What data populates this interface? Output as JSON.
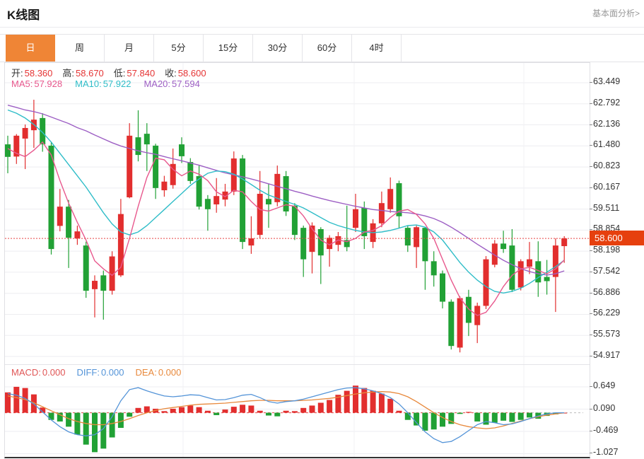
{
  "header": {
    "title": "K线图",
    "link_label": "基本面分析>"
  },
  "tabs": [
    {
      "label": "日",
      "selected": true
    },
    {
      "label": "周",
      "selected": false
    },
    {
      "label": "月",
      "selected": false
    },
    {
      "label": "5分",
      "selected": false
    },
    {
      "label": "15分",
      "selected": false
    },
    {
      "label": "30分",
      "selected": false
    },
    {
      "label": "60分",
      "selected": false
    },
    {
      "label": "4时",
      "selected": false
    }
  ],
  "ohlc_legend": [
    {
      "label": "开:",
      "value": "58.360"
    },
    {
      "label": "高:",
      "value": "58.670"
    },
    {
      "label": "低:",
      "value": "57.840"
    },
    {
      "label": "收:",
      "value": "58.600"
    }
  ],
  "ma_legend": [
    {
      "label": "MA5:",
      "value": "57.928",
      "color": "#e8588d"
    },
    {
      "label": "MA10:",
      "value": "57.922",
      "color": "#2fbdc8"
    },
    {
      "label": "MA20:",
      "value": "57.594",
      "color": "#9d5fc4"
    }
  ],
  "macd_legend": [
    {
      "label": "MACD:",
      "value": "0.000",
      "color": "#e05656"
    },
    {
      "label": "DIFF:",
      "value": "0.000",
      "color": "#5494d8"
    },
    {
      "label": "DEA:",
      "value": "0.000",
      "color": "#e8893c"
    }
  ],
  "price_badge": {
    "value": "58.600",
    "color": "#e6400e"
  },
  "colors": {
    "up": "#e22e2e",
    "down": "#21a135",
    "selected_tab": "#ef8536",
    "dotted_line": "#e64545",
    "ohlc_value": "#e53535",
    "diff_line": "#5494d8",
    "dea_line": "#e8893c",
    "ma5": "#e8588d",
    "ma10": "#2fbdc8",
    "ma20": "#9d5fc4",
    "grid": "#ededf1",
    "vgrid": "#f2f2f5"
  },
  "chart_data": {
    "type": "candlestick-with-macd",
    "main_axis_ticks": [
      "63.449",
      "62.792",
      "62.136",
      "61.480",
      "60.823",
      "60.167",
      "59.511",
      "58.854",
      "58.198",
      "57.542",
      "56.886",
      "56.229",
      "55.573",
      "54.917"
    ],
    "main_axis_top_value": 63.449,
    "main_axis_step": 0.6558,
    "dotted_line_price": 58.6,
    "candles_ohlc": [
      [
        61.53,
        61.8,
        60.63,
        61.14
      ],
      [
        61.15,
        61.85,
        60.92,
        61.8
      ],
      [
        61.71,
        62.15,
        60.76,
        62.04
      ],
      [
        61.97,
        62.92,
        61.42,
        62.3
      ],
      [
        62.35,
        62.5,
        61.3,
        61.53
      ],
      [
        61.49,
        61.6,
        58.1,
        58.27
      ],
      [
        58.99,
        60.14,
        58.82,
        59.59
      ],
      [
        59.59,
        59.8,
        57.68,
        58.62
      ],
      [
        58.6,
        59.0,
        58.4,
        58.82
      ],
      [
        58.38,
        58.5,
        56.75,
        56.97
      ],
      [
        57.02,
        57.45,
        56.14,
        57.28
      ],
      [
        57.45,
        57.6,
        56.07,
        56.97
      ],
      [
        56.97,
        58.2,
        56.85,
        58.04
      ],
      [
        57.45,
        59.83,
        57.4,
        59.36
      ],
      [
        59.88,
        62.19,
        59.85,
        61.8
      ],
      [
        61.75,
        62.59,
        61.0,
        61.2
      ],
      [
        61.86,
        62.19,
        60.7,
        61.53
      ],
      [
        61.49,
        61.55,
        59.83,
        60.17
      ],
      [
        60.1,
        60.55,
        59.9,
        60.37
      ],
      [
        60.26,
        61.4,
        60.15,
        60.92
      ],
      [
        61.53,
        61.75,
        60.95,
        61.16
      ],
      [
        60.98,
        61.1,
        60.3,
        60.39
      ],
      [
        60.54,
        60.87,
        59.5,
        59.59
      ],
      [
        59.83,
        59.95,
        58.84,
        59.51
      ],
      [
        59.66,
        60.48,
        59.4,
        59.92
      ],
      [
        59.81,
        60.3,
        59.6,
        60.06
      ],
      [
        60.06,
        61.31,
        59.95,
        61.09
      ],
      [
        61.09,
        61.2,
        58.27,
        58.49
      ],
      [
        58.38,
        59.29,
        58.12,
        58.6
      ],
      [
        58.71,
        60.7,
        58.6,
        59.99
      ],
      [
        59.83,
        60.3,
        58.93,
        59.66
      ],
      [
        59.73,
        60.87,
        59.6,
        60.61
      ],
      [
        60.54,
        60.7,
        59.3,
        59.44
      ],
      [
        59.62,
        59.7,
        58.55,
        58.71
      ],
      [
        58.93,
        59.0,
        57.4,
        57.95
      ],
      [
        58.18,
        59.1,
        57.51,
        59.0
      ],
      [
        58.89,
        58.95,
        57.18,
        58.07
      ],
      [
        58.27,
        58.7,
        57.72,
        58.62
      ],
      [
        58.4,
        58.8,
        58.2,
        58.67
      ],
      [
        58.55,
        59.62,
        58.2,
        58.33
      ],
      [
        58.93,
        59.99,
        58.8,
        59.51
      ],
      [
        59.55,
        59.75,
        58.27,
        58.67
      ],
      [
        58.49,
        59.2,
        58.3,
        59.07
      ],
      [
        59.07,
        60.06,
        58.95,
        59.7
      ],
      [
        59.51,
        60.5,
        59.4,
        60.14
      ],
      [
        60.32,
        60.4,
        58.93,
        59.29
      ],
      [
        58.93,
        59.0,
        58.18,
        58.38
      ],
      [
        58.33,
        59.0,
        57.68,
        58.95
      ],
      [
        58.93,
        58.95,
        57.0,
        57.89
      ],
      [
        57.89,
        58.2,
        57.1,
        57.45
      ],
      [
        57.51,
        57.6,
        56.42,
        56.63
      ],
      [
        56.63,
        56.7,
        55.14,
        55.25
      ],
      [
        55.2,
        56.8,
        55.05,
        56.74
      ],
      [
        56.78,
        57.0,
        55.56,
        55.97
      ],
      [
        55.9,
        56.6,
        55.34,
        56.5
      ],
      [
        56.5,
        58.05,
        56.4,
        57.95
      ],
      [
        57.78,
        58.55,
        57.7,
        58.44
      ],
      [
        58.44,
        58.84,
        58.15,
        58.27
      ],
      [
        58.38,
        58.89,
        56.93,
        57.0
      ],
      [
        57.07,
        57.95,
        56.98,
        57.89
      ],
      [
        57.72,
        58.49,
        57.49,
        57.95
      ],
      [
        57.89,
        58.51,
        56.78,
        57.23
      ],
      [
        57.4,
        57.93,
        56.85,
        57.27
      ],
      [
        57.4,
        58.6,
        56.31,
        58.38
      ],
      [
        58.36,
        58.67,
        57.84,
        58.6
      ]
    ],
    "ma5": [
      61.4,
      61.25,
      61.15,
      61.35,
      61.6,
      61.2,
      60.4,
      59.7,
      59.1,
      58.55,
      57.9,
      57.65,
      57.45,
      57.7,
      58.6,
      59.6,
      60.5,
      61.1,
      61.05,
      60.75,
      60.55,
      60.7,
      60.6,
      60.4,
      60.05,
      59.9,
      60.1,
      60.05,
      59.75,
      59.5,
      59.45,
      59.55,
      59.65,
      59.6,
      59.3,
      58.9,
      58.55,
      58.4,
      58.55,
      58.5,
      58.6,
      58.8,
      58.85,
      59.0,
      59.25,
      59.45,
      59.5,
      59.35,
      59.05,
      58.6,
      57.95,
      57.3,
      56.75,
      56.4,
      56.2,
      56.3,
      56.65,
      57.1,
      57.45,
      57.65,
      57.7,
      57.6,
      57.5,
      57.65,
      57.93
    ],
    "ma10": [
      62.6,
      62.5,
      62.35,
      62.15,
      61.9,
      61.6,
      61.25,
      60.9,
      60.55,
      60.2,
      59.8,
      59.4,
      59.05,
      58.8,
      58.71,
      58.8,
      59.0,
      59.25,
      59.5,
      59.75,
      60.0,
      60.25,
      60.45,
      60.63,
      60.7,
      60.68,
      60.6,
      60.45,
      60.28,
      60.1,
      59.95,
      59.85,
      59.75,
      59.66,
      59.55,
      59.4,
      59.25,
      59.1,
      59.0,
      58.92,
      58.85,
      58.8,
      58.78,
      58.8,
      58.85,
      58.92,
      59.0,
      59.02,
      58.95,
      58.8,
      58.55,
      58.2,
      57.85,
      57.55,
      57.3,
      57.1,
      56.95,
      56.9,
      56.95,
      57.05,
      57.2,
      57.38,
      57.55,
      57.72,
      57.92
    ],
    "ma20": [
      62.75,
      62.68,
      62.6,
      62.55,
      62.48,
      62.38,
      62.28,
      62.18,
      62.05,
      61.95,
      61.82,
      61.7,
      61.58,
      61.48,
      61.4,
      61.33,
      61.27,
      61.22,
      61.15,
      61.08,
      61.02,
      60.95,
      60.88,
      60.8,
      60.72,
      60.64,
      60.58,
      60.52,
      60.45,
      60.38,
      60.3,
      60.22,
      60.15,
      60.07,
      60.0,
      59.92,
      59.85,
      59.78,
      59.72,
      59.66,
      59.6,
      59.55,
      59.5,
      59.47,
      59.44,
      59.42,
      59.4,
      59.36,
      59.3,
      59.22,
      59.1,
      58.95,
      58.78,
      58.6,
      58.42,
      58.25,
      58.08,
      57.92,
      57.78,
      57.66,
      57.57,
      57.5,
      57.46,
      57.5,
      57.59
    ],
    "macd_axis_ticks": [
      "0.649",
      "0.090",
      "-0.469",
      "-1.027"
    ],
    "macd_hist": [
      0.51,
      0.65,
      0.62,
      0.46,
      0.13,
      -0.18,
      -0.22,
      -0.35,
      -0.55,
      -0.8,
      -0.99,
      -0.9,
      -0.62,
      -0.38,
      -0.1,
      0.12,
      0.16,
      0.1,
      0.04,
      0.1,
      0.14,
      0.18,
      0.14,
      0.05,
      -0.06,
      0.08,
      0.15,
      0.2,
      0.18,
      0.05,
      -0.07,
      -0.09,
      0.05,
      0.04,
      0.12,
      0.18,
      0.25,
      0.32,
      0.45,
      0.55,
      0.68,
      0.62,
      0.55,
      0.48,
      0.35,
      0.05,
      -0.18,
      -0.32,
      -0.45,
      -0.42,
      -0.35,
      -0.28,
      -0.03,
      0.02,
      -0.22,
      -0.3,
      -0.25,
      -0.2,
      -0.23,
      -0.18,
      -0.12,
      -0.15,
      -0.08,
      -0.04,
      0.0
    ],
    "diff": [
      0.48,
      0.44,
      0.36,
      0.22,
      0.02,
      -0.18,
      -0.35,
      -0.48,
      -0.55,
      -0.58,
      -0.55,
      -0.4,
      -0.1,
      0.3,
      0.58,
      0.63,
      0.55,
      0.48,
      0.42,
      0.4,
      0.42,
      0.45,
      0.44,
      0.38,
      0.32,
      0.33,
      0.38,
      0.44,
      0.46,
      0.38,
      0.28,
      0.24,
      0.28,
      0.3,
      0.34,
      0.4,
      0.46,
      0.52,
      0.58,
      0.62,
      0.63,
      0.6,
      0.55,
      0.48,
      0.38,
      0.22,
      0.0,
      -0.25,
      -0.48,
      -0.65,
      -0.75,
      -0.72,
      -0.6,
      -0.45,
      -0.3,
      -0.22,
      -0.25,
      -0.3,
      -0.28,
      -0.22,
      -0.15,
      -0.08,
      -0.03,
      0.0,
      0.0
    ],
    "dea": [
      0.42,
      0.38,
      0.33,
      0.25,
      0.15,
      0.05,
      -0.05,
      -0.15,
      -0.22,
      -0.27,
      -0.3,
      -0.3,
      -0.27,
      -0.22,
      -0.15,
      -0.07,
      0.0,
      0.06,
      0.1,
      0.13,
      0.16,
      0.19,
      0.21,
      0.22,
      0.23,
      0.24,
      0.26,
      0.28,
      0.3,
      0.31,
      0.31,
      0.3,
      0.3,
      0.3,
      0.31,
      0.32,
      0.34,
      0.36,
      0.39,
      0.43,
      0.47,
      0.5,
      0.52,
      0.53,
      0.52,
      0.48,
      0.4,
      0.28,
      0.14,
      0.0,
      -0.12,
      -0.22,
      -0.3,
      -0.35,
      -0.38,
      -0.4,
      -0.38,
      -0.33,
      -0.27,
      -0.21,
      -0.15,
      -0.1,
      -0.06,
      -0.03,
      0.0
    ]
  }
}
